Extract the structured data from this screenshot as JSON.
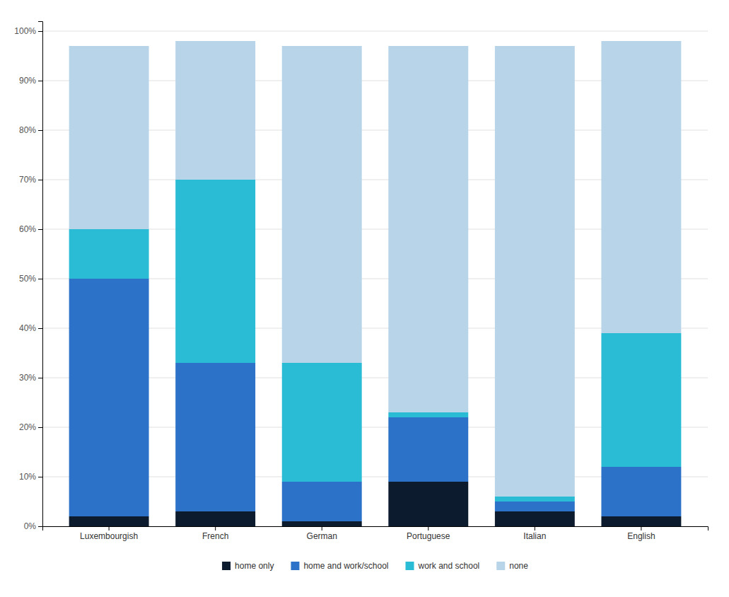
{
  "chart_data": {
    "type": "bar",
    "stacked": true,
    "categories": [
      "Luxembourgish",
      "French",
      "German",
      "Portuguese",
      "Italian",
      "English"
    ],
    "series": [
      {
        "name": "home only",
        "color": "#0d1b2e",
        "values": [
          2,
          3,
          1,
          9,
          3,
          2
        ]
      },
      {
        "name": "home and work/school",
        "color": "#2b72c8",
        "values": [
          48,
          30,
          8,
          13,
          2,
          10
        ]
      },
      {
        "name": "work and school",
        "color": "#29bcd4",
        "values": [
          10,
          37,
          24,
          1,
          1,
          27
        ]
      },
      {
        "name": "none",
        "color": "#b8d4e8",
        "values": [
          37,
          28,
          64,
          74,
          91,
          59
        ]
      }
    ],
    "ylim": [
      0,
      102
    ],
    "yticks": [
      {
        "value": 0,
        "label": "0%"
      },
      {
        "value": 10,
        "label": "10%"
      },
      {
        "value": 20,
        "label": "20%"
      },
      {
        "value": 30,
        "label": "30%"
      },
      {
        "value": 40,
        "label": "40%"
      },
      {
        "value": 50,
        "label": "50%"
      },
      {
        "value": 60,
        "label": "60%"
      },
      {
        "value": 70,
        "label": "70%"
      },
      {
        "value": 80,
        "label": "80%"
      },
      {
        "value": 90,
        "label": "90%"
      },
      {
        "value": 100,
        "label": "100%"
      }
    ],
    "grid": true,
    "legend": "bottom"
  }
}
